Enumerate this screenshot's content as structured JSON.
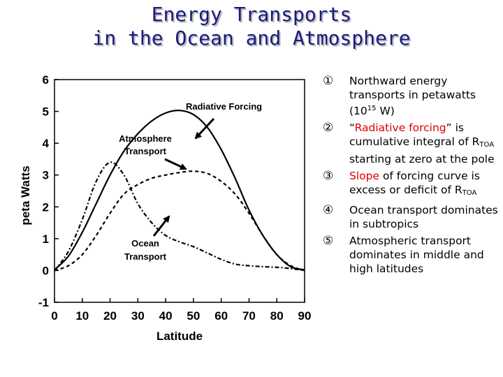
{
  "title": {
    "line1": "Energy Transports",
    "line2": "in the Ocean and Atmosphere"
  },
  "notes": [
    {
      "num": "①",
      "text_a": "Northward energy transports in petawatts (10",
      "sup": "15",
      "text_b": " W)"
    },
    {
      "num": "②",
      "text_a": "“",
      "red": "Radiative forcing",
      "text_b": "” is cumulative integral of R",
      "sub": "TOA",
      "text_c": " starting at zero at the pole"
    },
    {
      "num": "③",
      "red": "Slope",
      "text_b": " of forcing curve is excess or deficit of R",
      "sub": "TOA"
    },
    {
      "num": "④",
      "text_a": "Ocean transport dominates in subtropics"
    },
    {
      "num": "⑤",
      "text_a": "Atmospheric transport dominates in middle and high latitudes"
    }
  ],
  "chart_data": {
    "type": "line",
    "xlabel": "Latitude",
    "ylabel": "peta Watts",
    "xlim": [
      0,
      90
    ],
    "ylim": [
      -1,
      6
    ],
    "x_ticks": [
      "0",
      "10",
      "20",
      "30",
      "40",
      "50",
      "60",
      "70",
      "80",
      "90"
    ],
    "y_ticks": [
      "-1",
      "0",
      "1",
      "2",
      "3",
      "4",
      "5",
      "6"
    ],
    "grid": false,
    "annotations": [
      {
        "text": "Radiative Forcing",
        "target": "Radiative Forcing curve"
      },
      {
        "text": "Atmosphere Transport",
        "target": "Atmosphere Transport curve"
      },
      {
        "text": "Ocean Transport",
        "target": "Ocean Transport curve"
      }
    ],
    "series": [
      {
        "name": "Radiative Forcing",
        "style": "solid",
        "x": [
          0,
          5,
          10,
          15,
          20,
          25,
          30,
          35,
          40,
          45,
          50,
          55,
          60,
          65,
          70,
          75,
          80,
          85,
          90
        ],
        "y": [
          0.02,
          0.45,
          1.2,
          2.1,
          3.0,
          3.75,
          4.3,
          4.7,
          4.95,
          5.03,
          4.9,
          4.5,
          3.8,
          2.9,
          1.9,
          1.1,
          0.5,
          0.12,
          0.02
        ]
      },
      {
        "name": "Atmosphere Transport",
        "style": "dashed",
        "x": [
          0,
          5,
          10,
          15,
          20,
          25,
          30,
          35,
          40,
          45,
          50,
          55,
          60,
          65,
          70,
          75,
          80,
          85,
          90
        ],
        "y": [
          0.0,
          0.15,
          0.5,
          1.1,
          1.8,
          2.4,
          2.7,
          2.9,
          3.0,
          3.08,
          3.12,
          3.05,
          2.8,
          2.4,
          1.8,
          1.1,
          0.5,
          0.15,
          0.0
        ]
      },
      {
        "name": "Ocean Transport",
        "style": "dash-dot",
        "x": [
          0,
          5,
          10,
          15,
          20,
          25,
          30,
          35,
          40,
          45,
          50,
          55,
          60,
          65,
          70,
          75,
          80,
          85,
          90
        ],
        "y": [
          0.0,
          0.6,
          1.6,
          2.8,
          3.4,
          3.0,
          2.1,
          1.5,
          1.1,
          0.9,
          0.75,
          0.55,
          0.35,
          0.2,
          0.15,
          0.12,
          0.1,
          0.06,
          0.0
        ]
      }
    ]
  }
}
